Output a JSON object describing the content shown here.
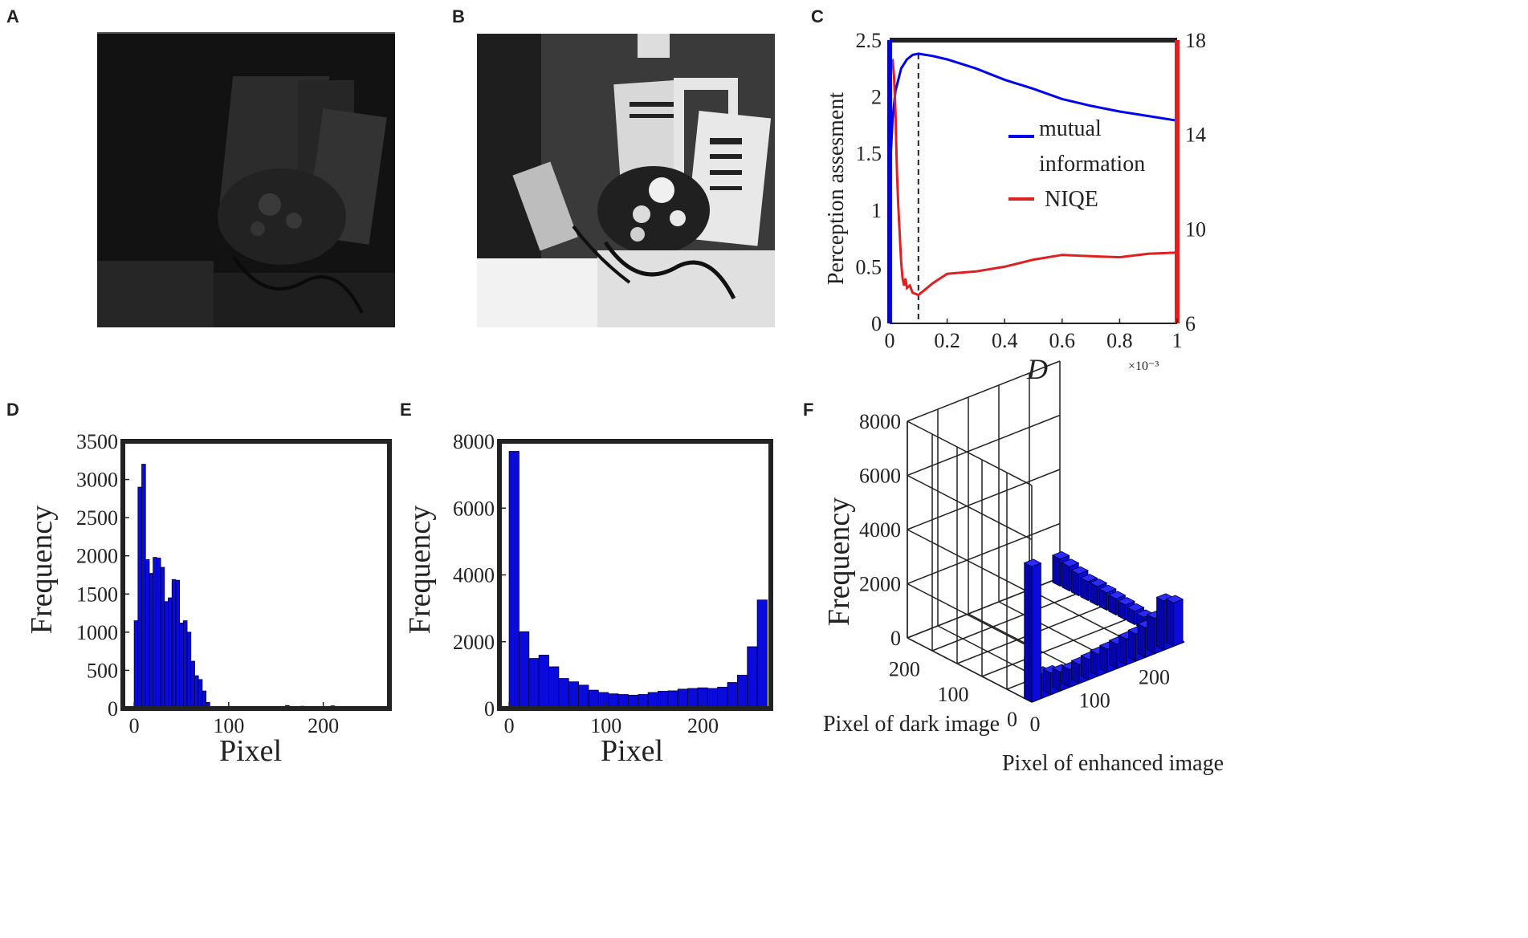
{
  "panels": {
    "A": "A",
    "B": "B",
    "C": "C",
    "D": "D",
    "E": "E",
    "F": "F"
  },
  "colors": {
    "blue": "#0000ee",
    "red": "#e02020",
    "bar": "#0a0adc",
    "axis": "#222222",
    "dark_bg": "#161616"
  },
  "chart_data": [
    {
      "panel": "C",
      "type": "line",
      "ylabel": "Perception assesment",
      "xlabel": "D",
      "x_exponent": "×10⁻³",
      "xlim": [
        0,
        1
      ],
      "ylim": [
        0,
        2.5
      ],
      "y2lim": [
        6,
        18
      ],
      "xticks": [
        "0",
        "0.2",
        "0.4",
        "0.6",
        "0.8",
        "1"
      ],
      "yticks": [
        "0",
        "0.5",
        "1",
        "1.5",
        "2",
        "2.5"
      ],
      "y2ticks": [
        "6",
        "10",
        "14",
        "18"
      ],
      "marker_x": 0.1,
      "legend_position": "right",
      "series": [
        {
          "name": "mutual information",
          "axis": "left",
          "color": "#0000ee",
          "x": [
            0,
            0.01,
            0.02,
            0.04,
            0.06,
            0.08,
            0.1,
            0.15,
            0.2,
            0.3,
            0.4,
            0.5,
            0.6,
            0.7,
            0.8,
            0.9,
            1.0
          ],
          "y": [
            1.3,
            1.8,
            2.05,
            2.25,
            2.33,
            2.37,
            2.38,
            2.36,
            2.33,
            2.25,
            2.15,
            2.07,
            1.98,
            1.92,
            1.87,
            1.83,
            1.79
          ]
        },
        {
          "name": "NIQE",
          "axis": "right",
          "color": "#e02020",
          "x": [
            0.01,
            0.015,
            0.02,
            0.025,
            0.03,
            0.035,
            0.04,
            0.045,
            0.05,
            0.055,
            0.06,
            0.07,
            0.08,
            0.1,
            0.12,
            0.15,
            0.2,
            0.3,
            0.4,
            0.5,
            0.6,
            0.7,
            0.8,
            0.9,
            1.0
          ],
          "y": [
            17.2,
            16.5,
            15.0,
            12.5,
            11.0,
            9.8,
            8.6,
            7.9,
            7.6,
            7.9,
            7.5,
            7.6,
            7.3,
            7.2,
            7.4,
            7.7,
            8.1,
            8.2,
            8.4,
            8.7,
            8.9,
            8.85,
            8.8,
            8.95,
            9.0
          ]
        }
      ]
    },
    {
      "panel": "D",
      "type": "bar",
      "xlabel": "Pixel",
      "ylabel": "Frequency",
      "xlim": [
        -12,
        270
      ],
      "ylim": [
        0,
        3500
      ],
      "xticks": [
        "0",
        "100",
        "200"
      ],
      "yticks": [
        "0",
        "500",
        "1000",
        "1500",
        "2000",
        "2500",
        "3000",
        "3500"
      ],
      "bin_width": 4,
      "bins_x": [
        0,
        4,
        8,
        12,
        16,
        20,
        24,
        28,
        32,
        36,
        40,
        44,
        48,
        52,
        56,
        60,
        64,
        68,
        72,
        76,
        80,
        96,
        112,
        128,
        144,
        160,
        176,
        192,
        208,
        224,
        240,
        256
      ],
      "values": [
        1150,
        2900,
        3200,
        1950,
        1770,
        1980,
        1970,
        1850,
        1400,
        1450,
        1690,
        1680,
        1120,
        1150,
        1000,
        620,
        430,
        380,
        230,
        80,
        20,
        20,
        15,
        10,
        20,
        40,
        30,
        15,
        35,
        20,
        10,
        5
      ]
    },
    {
      "panel": "E",
      "type": "bar",
      "xlabel": "Pixel",
      "ylabel": "Frequency",
      "xlim": [
        -10,
        270
      ],
      "ylim": [
        0,
        8000
      ],
      "xticks": [
        "0",
        "100",
        "200"
      ],
      "yticks": [
        "0",
        "2000",
        "4000",
        "6000",
        "8000"
      ],
      "bin_width": 10.24,
      "values": [
        7700,
        2300,
        1500,
        1600,
        1250,
        900,
        800,
        700,
        550,
        480,
        440,
        420,
        400,
        420,
        480,
        520,
        530,
        580,
        600,
        620,
        600,
        640,
        780,
        1000,
        1850,
        3250
      ]
    },
    {
      "panel": "F",
      "type": "bar",
      "xlabel": "Pixel of enhanced image",
      "ylabel": "Frequency",
      "zlabel": "Pixel of dark image",
      "ylim": [
        0,
        8000
      ],
      "yticks": [
        "0",
        "2000",
        "4000",
        "6000",
        "8000"
      ],
      "xticks": [
        "0",
        "100",
        "200"
      ],
      "zticks": [
        "0",
        "100",
        "200"
      ],
      "corner_bar": 5000,
      "front_row": [
        1500,
        900,
        800,
        700,
        650,
        700,
        750,
        800,
        850,
        900,
        950,
        1000,
        1100,
        1300,
        1800,
        1600
      ],
      "right_col": [
        1000,
        900,
        800,
        700,
        700,
        650,
        600,
        550,
        500,
        450,
        400,
        350
      ]
    }
  ]
}
